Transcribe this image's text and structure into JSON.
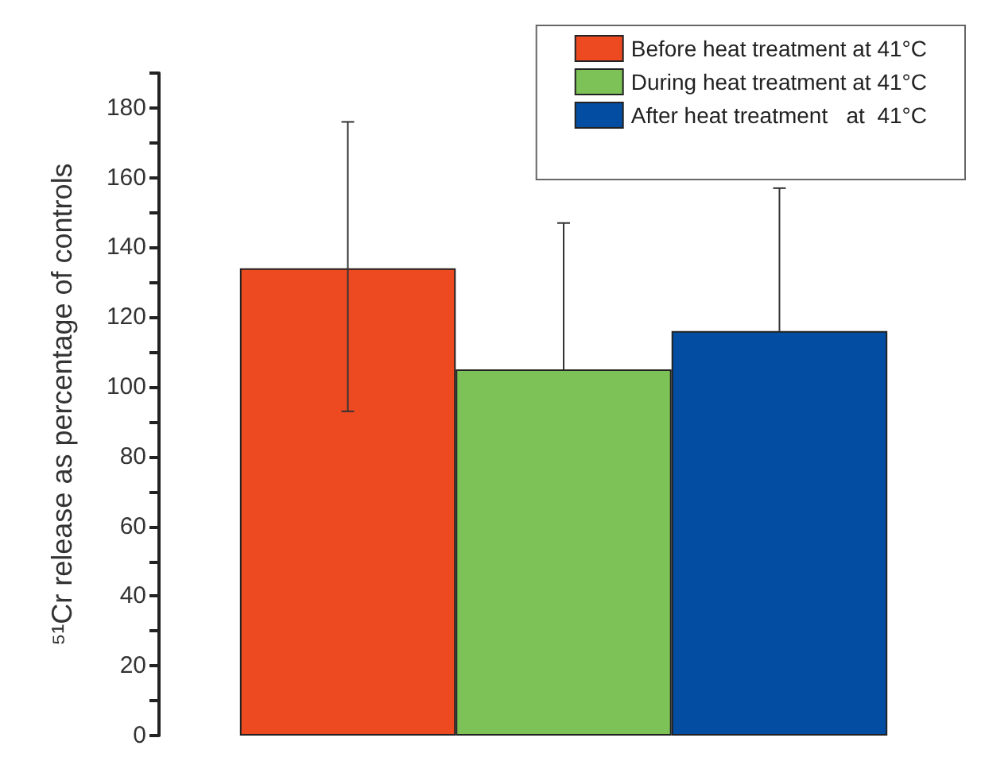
{
  "chart_data": {
    "type": "bar",
    "ylabel": "⁵¹Cr release as percentage of controls",
    "categories": [
      null
    ],
    "series": [
      {
        "name": "Before heat treatment at 41°C",
        "color": "#ee4a22",
        "values": [
          134
        ],
        "errors": [
          [
            93,
            176
          ]
        ]
      },
      {
        "name": "During heat treatment at 41°C",
        "color": "#7dc257",
        "values": [
          105
        ],
        "errors": [
          [
            105,
            147
          ]
        ]
      },
      {
        "name": "After heat treatment   at  41°C",
        "color": "#034ea2",
        "values": [
          116
        ],
        "errors": [
          [
            116,
            157
          ]
        ]
      }
    ],
    "ylim": [
      0,
      190
    ],
    "yticks": [
      0,
      {
        "value": 10,
        "label": null
      },
      20,
      {
        "value": 30,
        "label": null
      },
      40,
      {
        "value": 50,
        "label": null
      },
      60,
      {
        "value": 70,
        "label": null
      },
      80,
      {
        "value": 90,
        "label": null
      },
      100,
      {
        "value": 110,
        "label": null
      },
      120,
      {
        "value": 130,
        "label": null
      },
      140,
      {
        "value": 150,
        "label": null
      },
      160,
      {
        "value": 170,
        "label": null
      },
      180,
      {
        "value": 190,
        "label": null
      }
    ],
    "grid": false,
    "legend": "top right"
  }
}
